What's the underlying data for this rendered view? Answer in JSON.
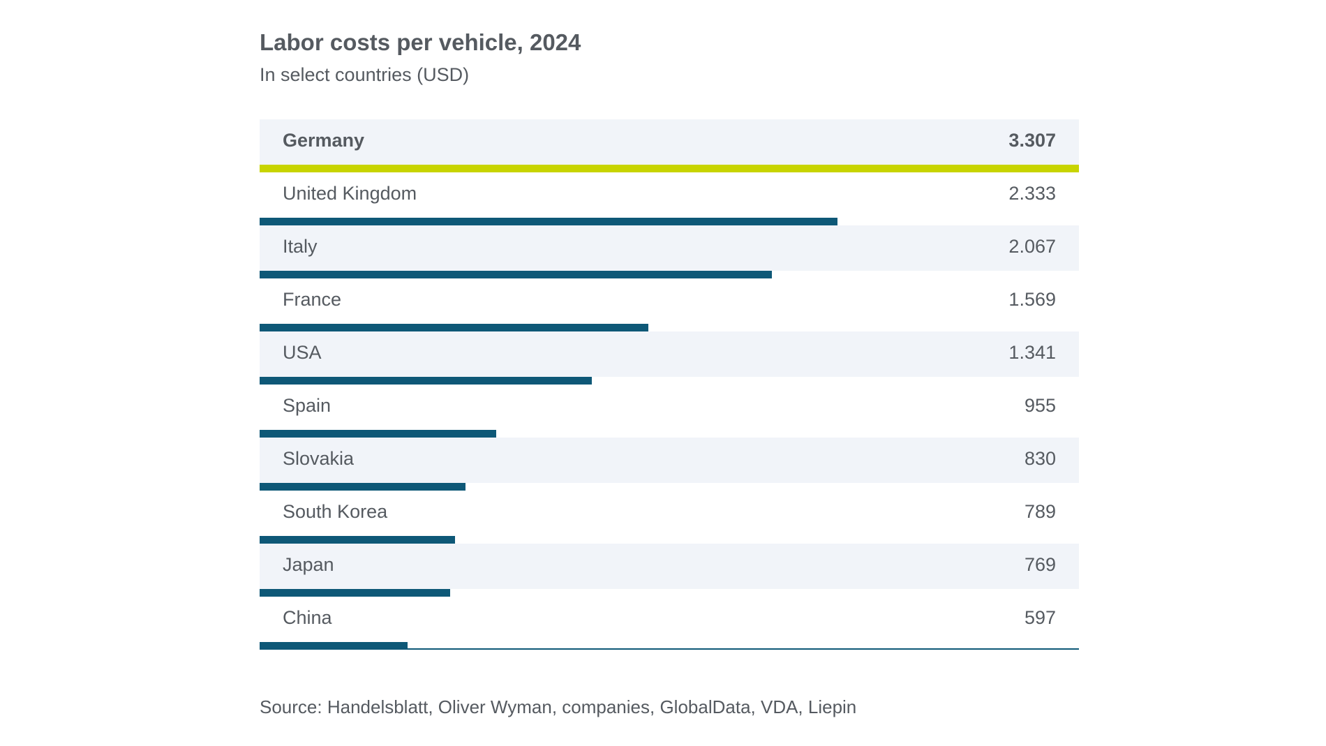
{
  "chart_data": {
    "type": "bar",
    "orientation": "horizontal",
    "title": "Labor costs per vehicle, 2024",
    "subtitle": "In select countries (USD)",
    "unit": "USD",
    "categories": [
      "Germany",
      "United Kingdom",
      "Italy",
      "France",
      "USA",
      "Spain",
      "Slovakia",
      "South Korea",
      "Japan",
      "China"
    ],
    "values": [
      3307,
      2333,
      2067,
      1569,
      1341,
      955,
      830,
      789,
      769,
      597
    ],
    "value_labels": [
      "3.307",
      "2.333",
      "2.067",
      "1.569",
      "1.341",
      "955",
      "830",
      "789",
      "769",
      "597"
    ],
    "highlight": "Germany",
    "xlim": [
      0,
      3307
    ],
    "xlabel": "",
    "ylabel": "",
    "grid": false,
    "legend": "none",
    "source": "Source: Handelsblatt, Oliver Wyman, companies, GlobalData, VDA, Liepin",
    "colors": {
      "highlight_bar": "#c8d400",
      "bar": "#0e5877",
      "row_shade": "#f1f4f9",
      "text": "#555a60"
    }
  }
}
